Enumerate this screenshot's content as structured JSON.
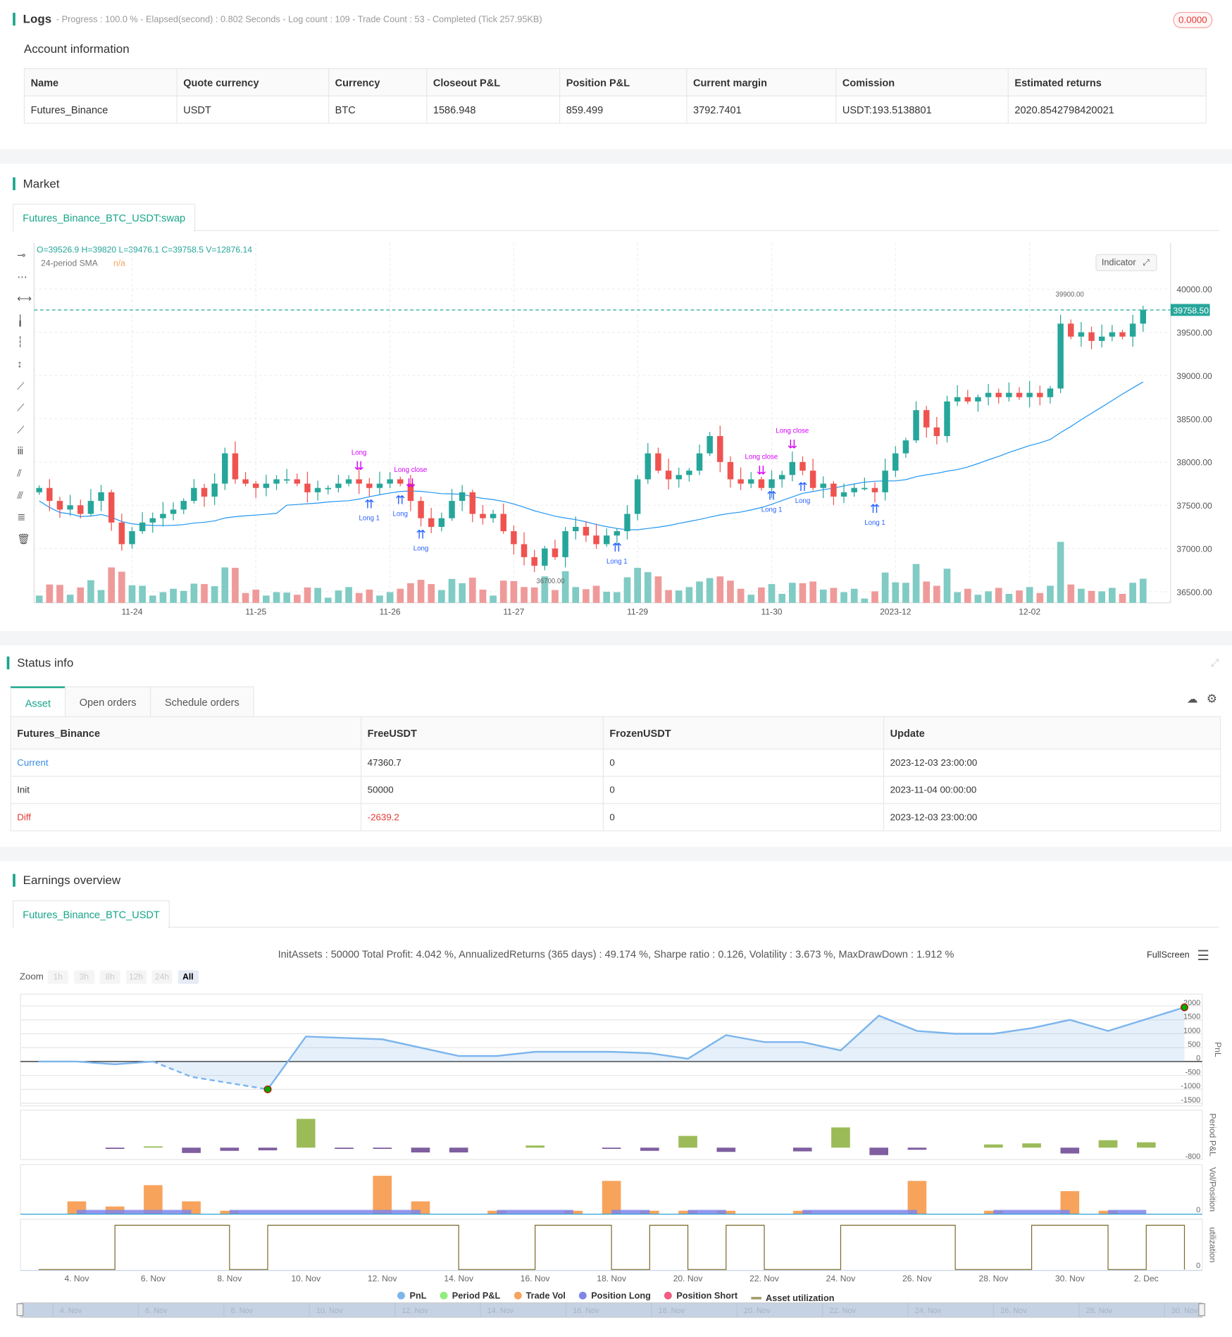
{
  "logs": {
    "title": "Logs",
    "info": "- Progress : 100.0 % - Elapsed(second) : 0.802  Seconds - Log count : 109 - Trade Count : 53 - Completed (Tick 257.95KB)",
    "badge": "0.0000"
  },
  "account": {
    "title": "Account information",
    "columns": [
      "Name",
      "Quote currency",
      "Currency",
      "Closeout P&L",
      "Position P&L",
      "Current margin",
      "Comission",
      "Estimated returns"
    ],
    "row": [
      "Futures_Binance",
      "USDT",
      "BTC",
      "1586.948",
      "859.499",
      "3792.7401",
      "USDT:193.5138801",
      "2020.8542798420021"
    ]
  },
  "market": {
    "title": "Market",
    "tab": "Futures_Binance_BTC_USDT:swap",
    "ohlc": "O=39526.9 H=39820 L=39476.1 C=39758.5 V=12876.14",
    "sma_label": "24-period SMA",
    "sma_value": "n/a",
    "indicator_button": "Indicator",
    "last_price": "39758.50",
    "high_label": "39900.00",
    "low_label": "36700.00",
    "toolbar_icons": [
      "horizontal-ray-icon",
      "horizontal-segment-icon",
      "horizontal-line-icon",
      "vertical-ray-icon",
      "vertical-segment-icon",
      "vertical-line-icon",
      "trend-ray-icon",
      "trend-segment-icon",
      "trend-line-icon",
      "price-label-icon",
      "parallel-channel-icon",
      "fib-channel-icon",
      "fib-retracement-icon",
      "trash-icon"
    ],
    "colors": {
      "up": "#26a69a",
      "down": "#ef5350",
      "sma": "#2196f3",
      "long": "#2962ff",
      "close": "#d500f9"
    }
  },
  "chart_data": [
    {
      "type": "candlestick",
      "title": "Futures_Binance_BTC_USDT:swap",
      "x_tick_labels": [
        "11-24",
        "11-25",
        "11-26",
        "11-27",
        "11-29",
        "11-30",
        "2023-12",
        "12-02"
      ],
      "x_tick_index": [
        9,
        21,
        34,
        46,
        58,
        71,
        83,
        96
      ],
      "y_ticks": [
        36500,
        37000,
        37500,
        38000,
        38500,
        39000,
        39500,
        40000
      ],
      "y_tick_labels": [
        "36500.00",
        "37000.00",
        "37500.00",
        "38000.00",
        "38500.00",
        "39000.00",
        "39500.00",
        "40000.00"
      ],
      "ylim": [
        36400,
        40450
      ],
      "sma_period": 24,
      "closes": [
        37700,
        37550,
        37450,
        37500,
        37400,
        37550,
        37650,
        37300,
        37050,
        37200,
        37300,
        37350,
        37400,
        37450,
        37550,
        37700,
        37600,
        37750,
        38100,
        37800,
        37750,
        37700,
        37750,
        37800,
        37800,
        37750,
        37650,
        37700,
        37700,
        37750,
        37800,
        37750,
        37700,
        37750,
        37800,
        37750,
        37550,
        37350,
        37250,
        37350,
        37550,
        37650,
        37400,
        37350,
        37400,
        37200,
        37050,
        36900,
        36800,
        37000,
        36900,
        37200,
        37250,
        37150,
        37050,
        37150,
        37200,
        37400,
        37800,
        38100,
        37900,
        37800,
        37850,
        37900,
        38100,
        38300,
        38000,
        37800,
        37750,
        37800,
        37700,
        37800,
        37850,
        38000,
        37900,
        37700,
        37750,
        37600,
        37650,
        37700,
        37700,
        37650,
        37900,
        38100,
        38250,
        38600,
        38400,
        38300,
        38700,
        38750,
        38700,
        38750,
        38800,
        38750,
        38800,
        38750,
        38800,
        38750,
        38850,
        39600,
        39450,
        39500,
        39400,
        39450,
        39500,
        39450,
        39600,
        39758.5
      ],
      "markers": [
        {
          "i": 31,
          "type": "close",
          "label": "Long"
        },
        {
          "i": 32,
          "type": "long",
          "label": "Long 1"
        },
        {
          "i": 35,
          "type": "long",
          "label": "Long"
        },
        {
          "i": 36,
          "type": "close",
          "label": "Long close"
        },
        {
          "i": 37,
          "type": "long",
          "label": "Long"
        },
        {
          "i": 56,
          "type": "long",
          "label": "Long 1"
        },
        {
          "i": 70,
          "type": "close",
          "label": "Long close"
        },
        {
          "i": 71,
          "type": "long",
          "label": "Long 1"
        },
        {
          "i": 73,
          "type": "close",
          "label": "Long close"
        },
        {
          "i": 74,
          "type": "long",
          "label": "Long"
        },
        {
          "i": 81,
          "type": "long",
          "label": "Long 1"
        }
      ]
    },
    {
      "type": "line",
      "title": "InitAssets : 50000 Total Profit: 4.042 %, AnnualizedReturns (365 days) : 49.174 %, Sharpe ratio : 0.126, Volatility : 3.673 %, MaxDrawDown : 1.912 %",
      "x_unit": "day (Nov = day, Dec = 30+day)",
      "x_tick_labels": [
        "4. Nov",
        "6. Nov",
        "8. Nov",
        "10. Nov",
        "12. Nov",
        "14. Nov",
        "16. Nov",
        "18. Nov",
        "20. Nov",
        "22. Nov",
        "24. Nov",
        "26. Nov",
        "28. Nov",
        "30. Nov",
        "2. Dec"
      ],
      "x_tick_days": [
        4,
        6,
        8,
        10,
        12,
        14,
        16,
        18,
        20,
        22,
        24,
        26,
        28,
        30,
        32
      ],
      "pnl": {
        "name": "PnL",
        "ylabel": "PnL",
        "y_ticks": [
          2000,
          1500,
          1000,
          500,
          0,
          -500,
          -1000,
          -1500
        ],
        "x": [
          3,
          4,
          5,
          6,
          7,
          9,
          10,
          12,
          14,
          15,
          16,
          18,
          19,
          20,
          21,
          22,
          23,
          24,
          25,
          26,
          27,
          28,
          29,
          30,
          31,
          33
        ],
        "y": [
          0,
          0,
          -100,
          0,
          -550,
          -1000,
          900,
          800,
          200,
          200,
          350,
          350,
          300,
          100,
          950,
          700,
          700,
          400,
          1650,
          1100,
          1000,
          1000,
          1200,
          1500,
          1100,
          1950
        ]
      },
      "period_pnl": {
        "name": "Period P&L",
        "ylabel": "Period P&L",
        "tick": "-800",
        "x": [
          5,
          6,
          7,
          8,
          9,
          10,
          11,
          12,
          13,
          14,
          16,
          18,
          19,
          20,
          21,
          23,
          24,
          25,
          26,
          28,
          29,
          30,
          31,
          32
        ],
        "y": [
          -100,
          50,
          -500,
          -300,
          -250,
          2700,
          -100,
          -50,
          -450,
          -450,
          200,
          -50,
          -300,
          1100,
          -400,
          -350,
          1900,
          -700,
          -200,
          300,
          400,
          -550,
          700,
          500
        ]
      },
      "trade_vol": {
        "name": "Trade Vol",
        "ylabel": "Vol/Position",
        "tick": "0",
        "x": [
          4,
          5,
          6,
          7,
          8,
          12,
          13,
          15,
          17,
          18,
          19,
          20,
          21,
          23,
          26,
          28,
          30,
          31
        ],
        "y": [
          15,
          9,
          34,
          15,
          4,
          45,
          15,
          4,
          4,
          39,
          4,
          4,
          4,
          4,
          39,
          4,
          27,
          4
        ]
      },
      "position_long": {
        "name": "Position Long",
        "ranges": [
          [
            4,
            7
          ],
          [
            8,
            13
          ],
          [
            15,
            17
          ],
          [
            18,
            19
          ],
          [
            20,
            21
          ],
          [
            23,
            26
          ],
          [
            28,
            30
          ],
          [
            31,
            32
          ]
        ]
      },
      "position_short": {
        "name": "Position Short"
      },
      "asset_utilization": {
        "name": "Asset utilization",
        "ylabel": "utilization",
        "tick": "0",
        "high_ranges": [
          [
            5,
            8
          ],
          [
            9,
            14
          ],
          [
            16,
            18
          ],
          [
            19,
            20
          ],
          [
            21,
            22
          ],
          [
            24,
            27
          ],
          [
            29,
            31
          ],
          [
            32,
            33
          ]
        ]
      },
      "navigator_labels": [
        "4. Nov",
        "6. Nov",
        "8. Nov",
        "10. Nov",
        "12. Nov",
        "14. Nov",
        "16. Nov",
        "18. Nov",
        "20. Nov",
        "22. Nov",
        "24. Nov",
        "26. Nov",
        "28. Nov",
        "30. Nov",
        "2. Dec"
      ]
    }
  ],
  "status": {
    "title": "Status info",
    "tabs": [
      "Asset",
      "Open orders",
      "Schedule orders"
    ],
    "columns": [
      "Futures_Binance",
      "FreeUSDT",
      "FrozenUSDT",
      "Update"
    ],
    "rows": [
      [
        "Current",
        "47360.7",
        "0",
        "2023-12-03 23:00:00"
      ],
      [
        "Init",
        "50000",
        "0",
        "2023-11-04 00:00:00"
      ],
      [
        "Diff",
        "-2639.2",
        "0",
        "2023-12-03 23:00:00"
      ]
    ]
  },
  "earnings": {
    "title": "Earnings overview",
    "tab": "Futures_Binance_BTC_USDT",
    "fullscreen": "FullScreen",
    "zoom_label": "Zoom",
    "zoom_buttons": [
      "1h",
      "3h",
      "8h",
      "12h",
      "24h",
      "All"
    ],
    "legend": [
      {
        "label": "PnL",
        "color": "#7cb5ec"
      },
      {
        "label": "Period P&L",
        "color": "#90ed7d"
      },
      {
        "label": "Trade Vol",
        "color": "#f7a35c"
      },
      {
        "label": "Position Long",
        "color": "#8085e9"
      },
      {
        "label": "Position Short",
        "color": "#f15c80"
      },
      {
        "label": "Asset utilization",
        "color": "#a39e6e"
      }
    ]
  }
}
